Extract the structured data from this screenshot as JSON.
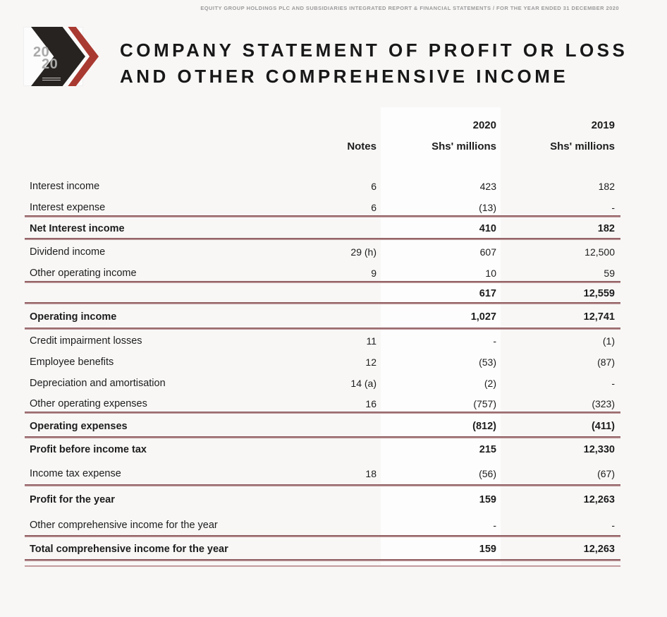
{
  "header": {
    "top_line": "EQUITY GROUP HOLDINGS PLC AND SUBSIDIARIES INTEGRATED REPORT & FINANCIAL STATEMENTS / FOR THE YEAR ENDED 31 DECEMBER 2020"
  },
  "logo": {
    "year_top": "20",
    "year_bottom": "20"
  },
  "title": {
    "line1": "COMPANY STATEMENT OF PROFIT OR LOSS",
    "line2": "AND OTHER COMPREHENSIVE INCOME"
  },
  "table": {
    "columns": {
      "notes": "Notes",
      "year_2020": "2020",
      "unit_2020": "Shs' millions",
      "year_2019": "2019",
      "unit_2019": "Shs' millions"
    },
    "rows": [
      {
        "label": "Interest income",
        "note": "6",
        "v2020": "423",
        "v2019": "182",
        "bold": false,
        "bold_values": false,
        "rule": false,
        "double_rule": false
      },
      {
        "label": "Interest expense",
        "note": "6",
        "v2020": "(13)",
        "v2019": "-",
        "bold": false,
        "bold_values": false,
        "rule": true,
        "double_rule": false
      },
      {
        "label": "Net Interest income",
        "note": "",
        "v2020": "410",
        "v2019": "182",
        "bold": true,
        "bold_values": false,
        "rule": true,
        "double_rule": false
      },
      {
        "label": "Dividend income",
        "note": "29 (h)",
        "v2020": "607",
        "v2019": "12,500",
        "bold": false,
        "bold_values": false,
        "rule": false,
        "double_rule": false
      },
      {
        "label": "Other operating income",
        "note": "9",
        "v2020": "10",
        "v2019": "59",
        "bold": false,
        "bold_values": false,
        "rule": true,
        "double_rule": false
      },
      {
        "label": "",
        "note": "",
        "v2020": "617",
        "v2019": "12,559",
        "bold": false,
        "bold_values": true,
        "rule": true,
        "double_rule": false
      },
      {
        "label": "Operating income",
        "note": "",
        "v2020": "1,027",
        "v2019": "12,741",
        "bold": true,
        "bold_values": false,
        "rule": true,
        "double_rule": false
      },
      {
        "label": "Credit impairment losses",
        "note": "11",
        "v2020": "-",
        "v2019": "(1)",
        "bold": false,
        "bold_values": false,
        "rule": false,
        "double_rule": false
      },
      {
        "label": "Employee benefits",
        "note": "12",
        "v2020": "(53)",
        "v2019": "(87)",
        "bold": false,
        "bold_values": false,
        "rule": false,
        "double_rule": false
      },
      {
        "label": "Depreciation and amortisation",
        "note": "14 (a)",
        "v2020": "(2)",
        "v2019": "-",
        "bold": false,
        "bold_values": false,
        "rule": false,
        "double_rule": false
      },
      {
        "label": "Other operating expenses",
        "note": "16",
        "v2020": "(757)",
        "v2019": "(323)",
        "bold": false,
        "bold_values": false,
        "rule": true,
        "double_rule": false
      },
      {
        "label": "Operating expenses",
        "note": "",
        "v2020": "(812)",
        "v2019": "(411)",
        "bold": true,
        "bold_values": false,
        "rule": true,
        "double_rule": false
      },
      {
        "label": "Profit before income tax",
        "note": "",
        "v2020": "215",
        "v2019": "12,330",
        "bold": true,
        "bold_values": false,
        "rule": false,
        "double_rule": false
      },
      {
        "label": "Income tax expense",
        "note": "18",
        "v2020": "(56)",
        "v2019": "(67)",
        "bold": false,
        "bold_values": false,
        "rule": true,
        "double_rule": false
      },
      {
        "label": "Profit for the year",
        "note": "",
        "v2020": "159",
        "v2019": "12,263",
        "bold": true,
        "bold_values": false,
        "rule": false,
        "double_rule": false
      },
      {
        "label": "Other comprehensive income for the year",
        "note": "",
        "v2020": "-",
        "v2019": "-",
        "bold": false,
        "bold_values": false,
        "rule": true,
        "double_rule": false
      },
      {
        "label": "Total comprehensive income for the year",
        "note": "",
        "v2020": "159",
        "v2019": "12,263",
        "bold": true,
        "bold_values": false,
        "rule": true,
        "double_rule": true
      }
    ]
  },
  "colors": {
    "page_bg": "#f8f7f6",
    "column_band": "#fdfdfd",
    "rule_red": "#7d474c",
    "chevron_red": "#a93a31",
    "chevron_black": "#272320",
    "text": "#1d1d1d",
    "muted_gray": "#9b9b9b"
  }
}
